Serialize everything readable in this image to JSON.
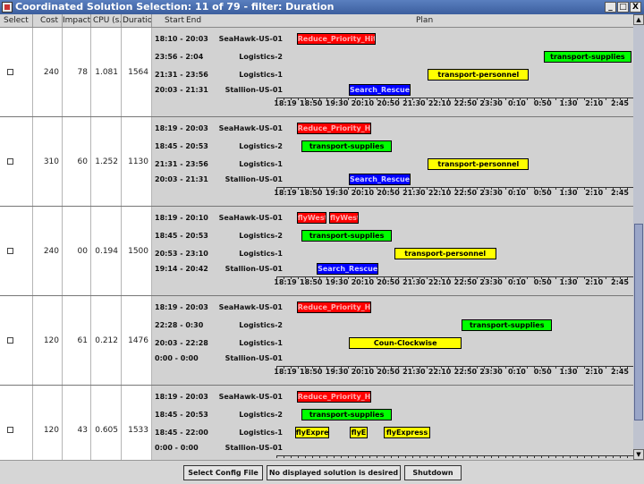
{
  "window": {
    "title": "Coordinated Solution Selection: 11 of 79 - filter: Duration",
    "minimize": "_",
    "maximize": "□",
    "close": "X"
  },
  "columns": {
    "select": "Select",
    "cost": "Cost",
    "impact": "Impact",
    "cpu": "CPU (s...",
    "duration": "Duration",
    "start": "Start",
    "end": "End",
    "plan": "Plan"
  },
  "axis_ticks": [
    "18:19",
    "18:50",
    "19:30",
    "20:10",
    "20:50",
    "21:30",
    "22:10",
    "22:50",
    "23:30",
    "0:10",
    "0:50",
    "1:30",
    "2:10",
    "2:45"
  ],
  "rows": [
    {
      "cost": "240",
      "impact": "78",
      "cpu": "1.081",
      "duration": "1564",
      "axis_ticks": [
        "18:19",
        "18:50",
        "19:30",
        "20:10",
        "20:50",
        "21:30",
        "22:10",
        "22:50",
        "23:30",
        "0:10",
        "0:50",
        "1:30",
        "2:10",
        "2:45"
      ],
      "lanes": [
        {
          "time": "18:10 - 20:03",
          "resource": "SeaHawk-US-01",
          "tasks": [
            {
              "label": "Reduce_Priority_Hit",
              "color": "#ff0000",
              "start": 0.057,
              "end": 0.277
            }
          ]
        },
        {
          "time": "23:56 - 2:04",
          "resource": "Logistics-2",
          "tasks": [
            {
              "label": "transport-supplies",
              "color": "#00ff00",
              "start": 0.749,
              "end": 0.995
            }
          ]
        },
        {
          "time": "21:31 - 23:56",
          "resource": "Logistics-1",
          "tasks": [
            {
              "label": "transport-personnel",
              "color": "#ffff00",
              "start": 0.424,
              "end": 0.708
            }
          ]
        },
        {
          "time": "20:03 - 21:31",
          "resource": "Stallion-US-01",
          "tasks": [
            {
              "label": "Search_Rescue",
              "color": "#0000ff",
              "start": 0.203,
              "end": 0.376
            }
          ]
        }
      ]
    },
    {
      "cost": "310",
      "impact": "60",
      "cpu": "1.252",
      "duration": "1130",
      "axis_ticks": [
        "18:19",
        "18:50",
        "19:30",
        "20:10",
        "20:50",
        "21:30",
        "22:10",
        "22:50",
        "23:30",
        "0:10",
        "0:50",
        "1:30",
        "2:10",
        "2:45"
      ],
      "lanes": [
        {
          "time": "18:19 - 20:03",
          "resource": "SeaHawk-US-01",
          "tasks": [
            {
              "label": "Reduce_Priority_Hit",
              "color": "#ff0000",
              "start": 0.057,
              "end": 0.265
            }
          ]
        },
        {
          "time": "18:45 - 20:53",
          "resource": "Logistics-2",
          "tasks": [
            {
              "label": "transport-supplies",
              "color": "#00ff00",
              "start": 0.07,
              "end": 0.324
            }
          ]
        },
        {
          "time": "21:31 - 23:56",
          "resource": "Logistics-1",
          "tasks": [
            {
              "label": "transport-personnel",
              "color": "#ffff00",
              "start": 0.424,
              "end": 0.708
            }
          ]
        },
        {
          "time": "20:03 - 21:31",
          "resource": "Stallion-US-01",
          "tasks": [
            {
              "label": "Search_Rescue",
              "color": "#0000ff",
              "start": 0.203,
              "end": 0.376
            }
          ]
        }
      ]
    },
    {
      "cost": "240",
      "impact": "00",
      "cpu": "0.194",
      "duration": "1500",
      "axis_ticks": [
        "18:19",
        "18:50",
        "19:30",
        "20:10",
        "20:50",
        "21:30",
        "22:10",
        "22:50",
        "23:30",
        "0:10",
        "0:50",
        "1:30",
        "2:10",
        "2:45"
      ],
      "lanes": [
        {
          "time": "18:19 - 20:10",
          "resource": "SeaHawk-US-01",
          "tasks": [
            {
              "label": "flyWest",
              "color": "#ff0000",
              "start": 0.057,
              "end": 0.14
            },
            {
              "label": "flyWest",
              "color": "#ff0000",
              "start": 0.148,
              "end": 0.23
            }
          ]
        },
        {
          "time": "18:45 - 20:53",
          "resource": "Logistics-2",
          "tasks": [
            {
              "label": "transport-supplies",
              "color": "#00ff00",
              "start": 0.07,
              "end": 0.324
            }
          ]
        },
        {
          "time": "20:53 - 23:10",
          "resource": "Logistics-1",
          "tasks": [
            {
              "label": "transport-personnel",
              "color": "#ffff00",
              "start": 0.33,
              "end": 0.616
            }
          ]
        },
        {
          "time": "19:14 - 20:42",
          "resource": "Stallion-US-01",
          "tasks": [
            {
              "label": "Search_Rescue",
              "color": "#0000ff",
              "start": 0.113,
              "end": 0.286
            }
          ]
        }
      ]
    },
    {
      "cost": "120",
      "impact": "61",
      "cpu": "0.212",
      "duration": "1476",
      "axis_ticks": [
        "18:19",
        "18:50",
        "19:30",
        "20:10",
        "20:50",
        "21:30",
        "22:10",
        "22:50",
        "23:30",
        "0:10",
        "0:50",
        "1:30",
        "2:10",
        "2:45"
      ],
      "lanes": [
        {
          "time": "18:19 - 20:03",
          "resource": "SeaHawk-US-01",
          "tasks": [
            {
              "label": "Reduce_Priority_Hit",
              "color": "#ff0000",
              "start": 0.057,
              "end": 0.265
            }
          ]
        },
        {
          "time": "22:28 - 0:30",
          "resource": "Logistics-2",
          "tasks": [
            {
              "label": "transport-supplies",
              "color": "#00ff00",
              "start": 0.52,
              "end": 0.772
            }
          ]
        },
        {
          "time": "20:03 - 22:28",
          "resource": "Logistics-1",
          "tasks": [
            {
              "label": "Coun-Clockwise",
              "color": "#ffff00",
              "start": 0.203,
              "end": 0.52
            }
          ]
        },
        {
          "time": "0:00 - 0:00",
          "resource": "Stallion-US-01",
          "tasks": []
        }
      ]
    },
    {
      "cost": "120",
      "impact": "43",
      "cpu": "0.605",
      "duration": "1533",
      "axis_ticks": [],
      "lanes": [
        {
          "time": "18:19 - 20:03",
          "resource": "SeaHawk-US-01",
          "tasks": [
            {
              "label": "Reduce_Priority_Hit",
              "color": "#ff0000",
              "start": 0.057,
              "end": 0.265
            }
          ]
        },
        {
          "time": "18:45 - 20:53",
          "resource": "Logistics-2",
          "tasks": [
            {
              "label": "transport-supplies",
              "color": "#00ff00",
              "start": 0.07,
              "end": 0.324
            }
          ]
        },
        {
          "time": "18:45 - 22:00",
          "resource": "Logistics-1",
          "tasks": [
            {
              "label": "flyExpress",
              "color": "#ffff00",
              "start": 0.052,
              "end": 0.148
            },
            {
              "label": "flyE",
              "color": "#ffff00",
              "start": 0.205,
              "end": 0.256
            },
            {
              "label": "flyExpress",
              "color": "#ffff00",
              "start": 0.302,
              "end": 0.43
            }
          ]
        },
        {
          "time": "0:00 - 0:00",
          "resource": "Stallion-US-01",
          "tasks": []
        }
      ]
    }
  ],
  "buttons": {
    "select_config": "Select Config File",
    "no_solution": "No displayed solution is desired",
    "shutdown": "Shutdown"
  }
}
